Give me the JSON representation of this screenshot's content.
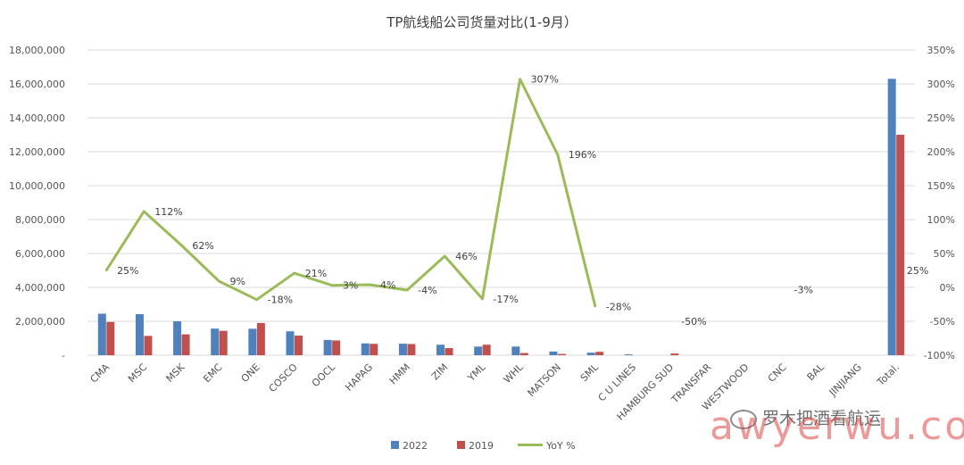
{
  "chart_data": {
    "type": "bar+line",
    "title": "TP航线船公司货量对比(1-9月）",
    "categories": [
      "CMA",
      "MSC",
      "MSK",
      "EMC",
      "ONE",
      "COSCO",
      "OOCL",
      "HAPAG",
      "HMM",
      "ZIM",
      "YML",
      "WHL",
      "MATSON",
      "SML",
      "C U LINES",
      "HAMBURG SUD",
      "TRANSFAR",
      "WESTWOOD",
      "CNC",
      "BAL",
      "JINJIANG",
      "Total."
    ],
    "series": [
      {
        "name": "2022",
        "type": "bar",
        "axis": "left",
        "color": "#4f81bd",
        "values": [
          2450000,
          2420000,
          2000000,
          1570000,
          1560000,
          1410000,
          900000,
          700000,
          680000,
          620000,
          510000,
          510000,
          220000,
          150000,
          50000,
          0,
          0,
          0,
          0,
          0,
          0,
          16300000
        ]
      },
      {
        "name": "2019",
        "type": "bar",
        "axis": "left",
        "color": "#c0504d",
        "values": [
          1960000,
          1140000,
          1230000,
          1440000,
          1900000,
          1160000,
          870000,
          670000,
          660000,
          420000,
          620000,
          130000,
          75000,
          200000,
          0,
          100000,
          0,
          0,
          0,
          0,
          0,
          13000000
        ]
      },
      {
        "name": "YoY %",
        "type": "line",
        "axis": "right",
        "color": "#9bbb59",
        "values": [
          25,
          112,
          62,
          9,
          -18,
          21,
          3,
          4,
          -4,
          46,
          -17,
          307,
          196,
          -28,
          null,
          null,
          null,
          null,
          null,
          null,
          null,
          null
        ]
      }
    ],
    "data_labels": [
      {
        "category": "CMA",
        "text": "25%"
      },
      {
        "category": "MSC",
        "text": "112%"
      },
      {
        "category": "MSK",
        "text": "62%"
      },
      {
        "category": "EMC",
        "text": "9%"
      },
      {
        "category": "ONE",
        "text": "-18%"
      },
      {
        "category": "COSCO",
        "text": "21%"
      },
      {
        "category": "OOCL",
        "text": "3%"
      },
      {
        "category": "HAPAG",
        "text": "4%"
      },
      {
        "category": "HMM",
        "text": "-4%"
      },
      {
        "category": "ZIM",
        "text": "46%"
      },
      {
        "category": "YML",
        "text": "-17%"
      },
      {
        "category": "WHL",
        "text": "307%"
      },
      {
        "category": "MATSON",
        "text": "196%"
      },
      {
        "category": "SML",
        "text": "-28%"
      },
      {
        "category": "HAMBURG SUD",
        "text": "-50%",
        "value": -50
      },
      {
        "category": "CNC",
        "text": "-3%",
        "value": -3
      },
      {
        "category": "Total.",
        "text": "25%",
        "value": 25
      }
    ],
    "y_left": {
      "min": 0,
      "max": 18000000,
      "step": 2000000,
      "ticks": [
        "-",
        "2,000,000",
        "4,000,000",
        "6,000,000",
        "8,000,000",
        "10,000,000",
        "12,000,000",
        "14,000,000",
        "16,000,000",
        "18,000,000"
      ]
    },
    "y_right": {
      "min": -100,
      "max": 350,
      "step": 50,
      "ticks": [
        "-100%",
        "-50%",
        "0%",
        "50%",
        "100%",
        "150%",
        "200%",
        "250%",
        "300%",
        "350%"
      ]
    },
    "legend": {
      "position": "bottom-center",
      "items": [
        "2022",
        "2019",
        "YoY %"
      ]
    },
    "grid": true
  },
  "watermark": {
    "text": "awyerwu.com",
    "wechat_text": "罗木把酒看航运"
  }
}
